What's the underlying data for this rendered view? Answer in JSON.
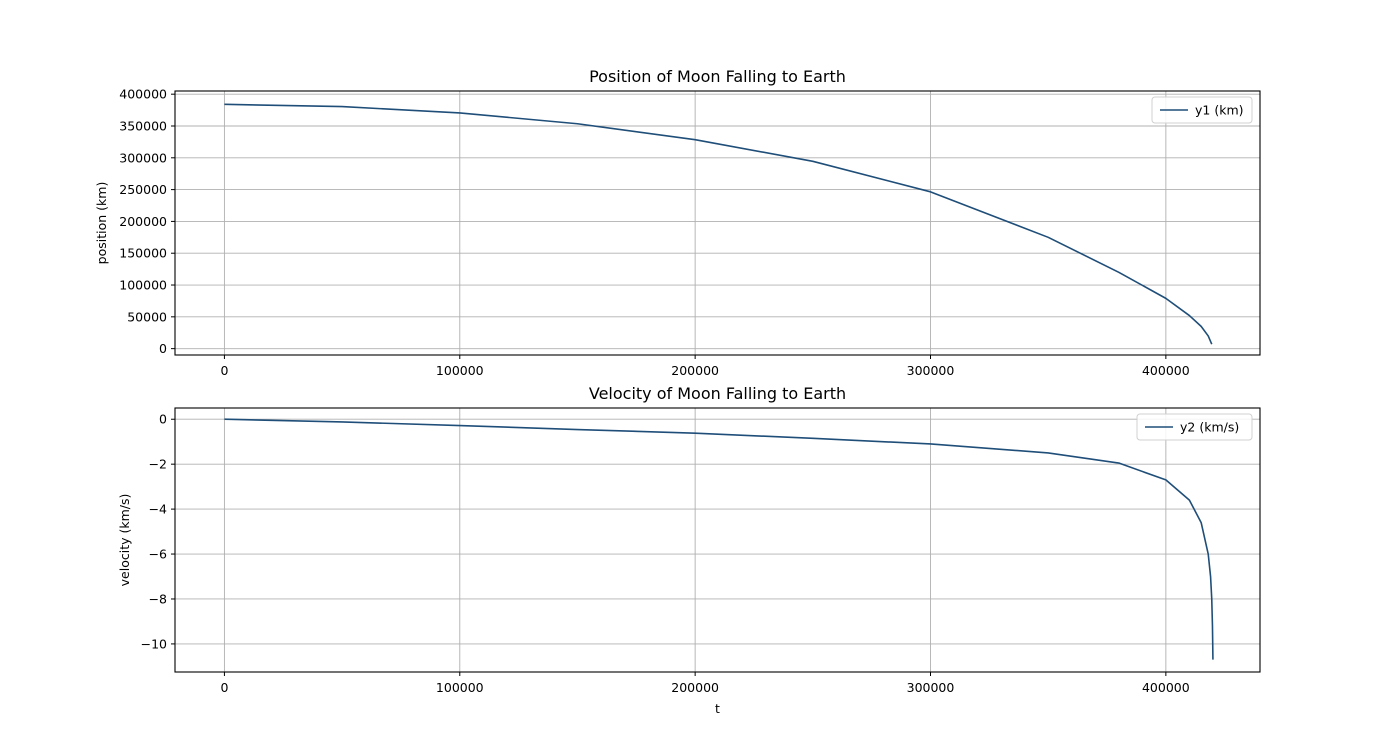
{
  "figure": {
    "background": "#ffffff",
    "line_color": "#1f4e79"
  },
  "chart_data": [
    {
      "type": "line",
      "title": "Position of Moon Falling to Earth",
      "xlabel": "",
      "ylabel": "position (km)",
      "xlim": [
        -21000,
        440000
      ],
      "ylim": [
        -10000,
        405000
      ],
      "xticks": [
        0,
        100000,
        200000,
        300000,
        400000
      ],
      "xtick_labels": [
        "0",
        "100000",
        "200000",
        "300000",
        "400000"
      ],
      "yticks": [
        0,
        50000,
        100000,
        150000,
        200000,
        250000,
        300000,
        350000,
        400000
      ],
      "ytick_labels": [
        "0",
        "50000",
        "100000",
        "150000",
        "200000",
        "250000",
        "300000",
        "350000",
        "400000"
      ],
      "grid": true,
      "legend": "upper right",
      "series": [
        {
          "name": "y1 (km)",
          "x": [
            0,
            50000,
            100000,
            150000,
            200000,
            250000,
            300000,
            350000,
            380000,
            400000,
            410000,
            415000,
            418000,
            419500
          ],
          "y": [
            384000,
            380500,
            370500,
            353500,
            328500,
            294500,
            246500,
            175000,
            120000,
            79000,
            52000,
            35000,
            20000,
            7000
          ]
        }
      ]
    },
    {
      "type": "line",
      "title": "Velocity of Moon Falling to Earth",
      "xlabel": "t",
      "ylabel": "velocity (km/s)",
      "xlim": [
        -21000,
        440000
      ],
      "ylim": [
        -11.25,
        0.5
      ],
      "xticks": [
        0,
        100000,
        200000,
        300000,
        400000
      ],
      "xtick_labels": [
        "0",
        "100000",
        "200000",
        "300000",
        "400000"
      ],
      "yticks": [
        0,
        -2,
        -4,
        -6,
        -8,
        -10
      ],
      "ytick_labels": [
        "0",
        "−2",
        "−4",
        "−6",
        "−8",
        "−10"
      ],
      "grid": true,
      "legend": "upper right",
      "series": [
        {
          "name": "y2 (km/s)",
          "x": [
            0,
            50000,
            100000,
            150000,
            200000,
            250000,
            300000,
            350000,
            380000,
            400000,
            410000,
            415000,
            418000,
            419000,
            419500,
            419800,
            420000
          ],
          "y": [
            0,
            -0.12,
            -0.28,
            -0.46,
            -0.62,
            -0.85,
            -1.1,
            -1.5,
            -1.95,
            -2.7,
            -3.6,
            -4.6,
            -6.0,
            -7.0,
            -8.0,
            -9.2,
            -10.7
          ]
        }
      ]
    }
  ]
}
